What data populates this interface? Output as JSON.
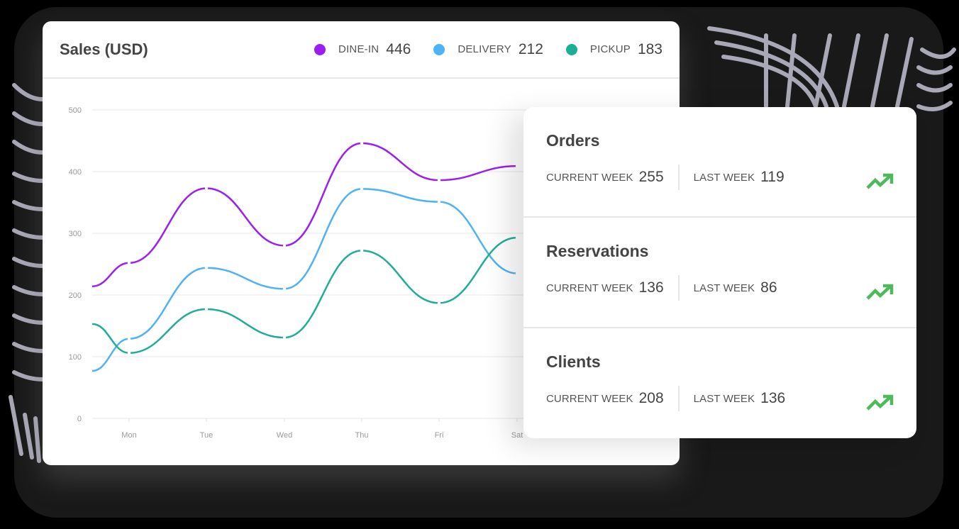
{
  "sales": {
    "title": "Sales (USD)",
    "legend": [
      {
        "label": "DINE-IN",
        "value": "446",
        "color": "#9b1ff2",
        "icon": "dot-icon"
      },
      {
        "label": "DELIVERY",
        "value": "212",
        "color": "#4eb3f5",
        "icon": "dot-icon"
      },
      {
        "label": "PICKUP",
        "value": "183",
        "color": "#1eae96",
        "icon": "dot-icon"
      }
    ]
  },
  "stats": [
    {
      "title": "Orders",
      "current_label": "CURRENT WEEK",
      "current_value": "255",
      "last_label": "LAST WEEK",
      "last_value": "119",
      "trend": "trending-up-icon"
    },
    {
      "title": "Reservations",
      "current_label": "CURRENT WEEK",
      "current_value": "136",
      "last_label": "LAST WEEK",
      "last_value": "86",
      "trend": "trending-up-icon"
    },
    {
      "title": "Clients",
      "current_label": "CURRENT WEEK",
      "current_value": "208",
      "last_label": "LAST WEEK",
      "last_value": "136",
      "trend": "trending-up-icon"
    }
  ],
  "colors": {
    "trend_up": "#4cba5a",
    "grid": "#ececec",
    "axis_text": "#999999"
  },
  "chart_data": {
    "type": "line",
    "title": "Sales (USD)",
    "xlabel": "",
    "ylabel": "",
    "categories": [
      "",
      "Mon",
      "Tue",
      "Wed",
      "Thu",
      "Fri",
      "Sat"
    ],
    "x_tick_labels": [
      "Mon",
      "Tue",
      "Wed",
      "Thu",
      "Fri",
      "Sat"
    ],
    "y_ticks": [
      0,
      100,
      200,
      300,
      400,
      500
    ],
    "ylim": [
      0,
      500
    ],
    "grid": true,
    "smooth": true,
    "legend_position": "top-right",
    "series": [
      {
        "name": "DINE-IN",
        "color": "#9b1ff2",
        "values": [
          214,
          252,
          373,
          280,
          446,
          386,
          409
        ]
      },
      {
        "name": "DELIVERY",
        "color": "#4eb3f5",
        "values": [
          77,
          129,
          244,
          210,
          372,
          351,
          235
        ]
      },
      {
        "name": "PICKUP",
        "color": "#1eae96",
        "values": [
          153,
          106,
          177,
          131,
          272,
          187,
          293
        ]
      }
    ]
  }
}
